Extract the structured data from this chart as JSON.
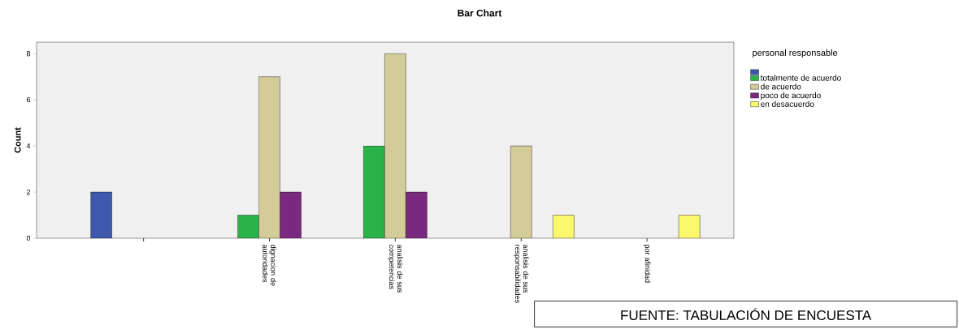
{
  "chart_data": {
    "type": "bar",
    "title": "Bar Chart",
    "ylabel": "Count",
    "legend_title": "personal responsable",
    "categories": [
      null,
      "dignacion de autoridades",
      "analisis de sus competencias",
      "analisis de sus responsabilidades",
      "por afinidad"
    ],
    "series": [
      {
        "color": "#3e58ac",
        "values": [
          2,
          null,
          null,
          null,
          null
        ]
      },
      {
        "name": "totalmente de acuerdo",
        "color": "#2ab34a",
        "values": [
          null,
          1,
          4,
          null,
          null
        ]
      },
      {
        "name": "de acuerdo",
        "color": "#d4cc98",
        "values": [
          null,
          7,
          8,
          4,
          null
        ]
      },
      {
        "name": "poco de acuerdo",
        "color": "#79297e",
        "values": [
          null,
          2,
          2,
          null,
          null
        ]
      },
      {
        "name": "en desacuerdo",
        "color": "#fbf86e",
        "values": [
          null,
          null,
          null,
          1,
          1
        ]
      }
    ],
    "ylim": [
      0,
      8.5
    ],
    "yticks": [
      0,
      2,
      4,
      6,
      8
    ],
    "grid": false,
    "legend": "right",
    "annotations": [
      "FUENTE: TABULACIÓN DE ENCUESTA"
    ]
  }
}
